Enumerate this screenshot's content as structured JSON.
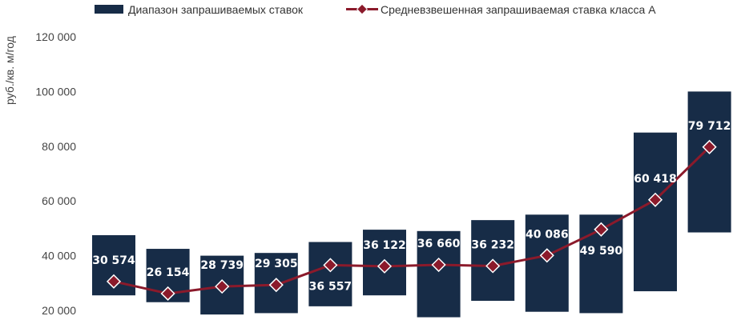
{
  "chart_data": {
    "type": "bar",
    "title": "",
    "xlabel": "",
    "ylabel": "руб./кв. м/год",
    "ylim": [
      20000,
      120000
    ],
    "yticks": [
      20000,
      40000,
      60000,
      80000,
      100000,
      120000
    ],
    "ytick_labels": [
      "20 000",
      "40 000",
      "60 000",
      "80 000",
      "100 000",
      "120 000"
    ],
    "grid": false,
    "legend": "top",
    "categories": [
      "",
      "",
      "",
      "",
      "",
      "",
      "",
      "",
      "",
      "",
      "",
      ""
    ],
    "series": [
      {
        "name": "Диапазон запрашиваемых ставок",
        "type": "range_bar",
        "color": "#172c47",
        "low": [
          25500,
          23000,
          18500,
          19000,
          21500,
          25500,
          17500,
          23500,
          19500,
          19000,
          27000,
          48500
        ],
        "high": [
          47500,
          42500,
          40000,
          41000,
          45000,
          49500,
          49000,
          53000,
          55000,
          55000,
          85000,
          100000
        ]
      },
      {
        "name": "Средневзвешенная запрашиваемая ставка класса А",
        "type": "line",
        "color": "#8b1a2b",
        "values": [
          30574,
          26154,
          28739,
          29305,
          36557,
          36122,
          36660,
          36232,
          40086,
          49590,
          60418,
          79712
        ],
        "labels": [
          "30 574",
          "26 154",
          "28 739",
          "29 305",
          "36 557",
          "36 122",
          "36 660",
          "36 232",
          "40 086",
          "49 590",
          "60 418",
          "79 712"
        ],
        "label_position": [
          "above",
          "above",
          "above",
          "above",
          "below",
          "above",
          "above",
          "above",
          "above",
          "below",
          "above",
          "above"
        ]
      }
    ]
  }
}
